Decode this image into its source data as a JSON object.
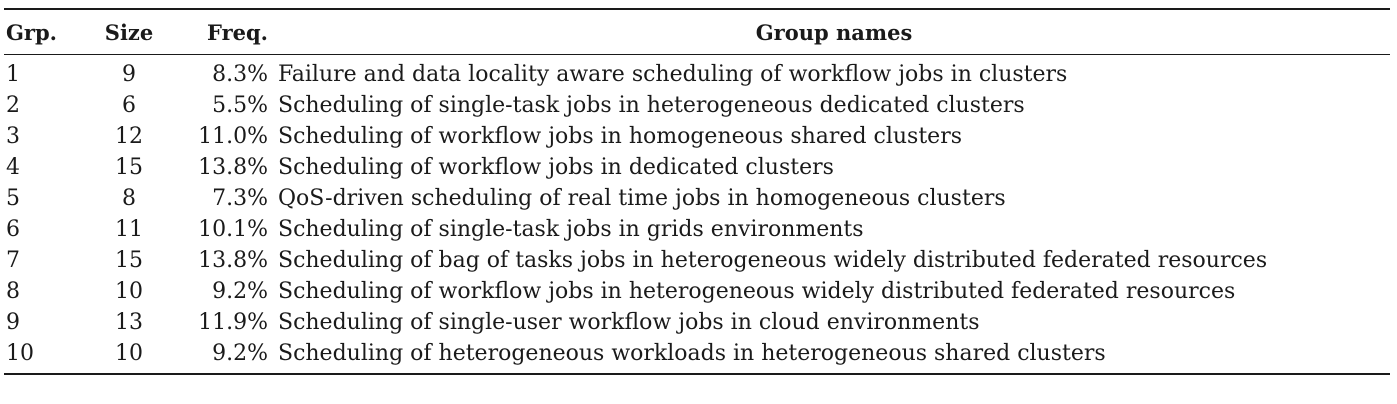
{
  "table": {
    "headers": {
      "group": "Grp.",
      "size": "Size",
      "freq": "Freq.",
      "names": "Group names"
    },
    "rows": [
      {
        "group": "1",
        "size": "9",
        "freq": "8.3%",
        "name": "Failure and data locality aware scheduling of workflow jobs in clusters"
      },
      {
        "group": "2",
        "size": "6",
        "freq": "5.5%",
        "name": "Scheduling of single-task jobs in heterogeneous dedicated clusters"
      },
      {
        "group": "3",
        "size": "12",
        "freq": "11.0%",
        "name": "Scheduling of workflow jobs in homogeneous shared clusters"
      },
      {
        "group": "4",
        "size": "15",
        "freq": "13.8%",
        "name": "Scheduling of workflow jobs in dedicated clusters"
      },
      {
        "group": "5",
        "size": "8",
        "freq": "7.3%",
        "name": "QoS-driven scheduling of real time jobs in homogeneous clusters"
      },
      {
        "group": "6",
        "size": "11",
        "freq": "10.1%",
        "name": "Scheduling of single-task jobs in grids environments"
      },
      {
        "group": "7",
        "size": "15",
        "freq": "13.8%",
        "name": "Scheduling of bag of tasks jobs in heterogeneous widely distributed federated resources"
      },
      {
        "group": "8",
        "size": "10",
        "freq": "9.2%",
        "name": "Scheduling of workflow jobs in heterogeneous widely distributed federated resources"
      },
      {
        "group": "9",
        "size": "13",
        "freq": "11.9%",
        "name": "Scheduling of single-user workflow jobs in cloud environments"
      },
      {
        "group": "10",
        "size": "10",
        "freq": "9.2%",
        "name": "Scheduling of heterogeneous workloads in heterogeneous shared clusters"
      }
    ]
  }
}
